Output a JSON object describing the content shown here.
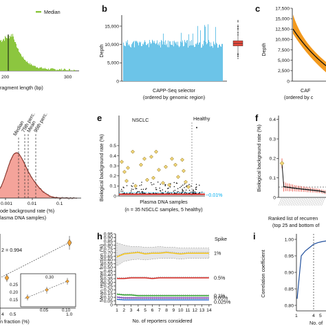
{
  "chart_data": [
    {
      "panel": "a-top",
      "type": "bar",
      "legend": [
        "Median"
      ],
      "xlabel": "ragment length (bp)",
      "x_ticks": [
        "200",
        "300"
      ],
      "x_range": [
        100,
        320
      ],
      "colors": {
        "bars": "#8cc63f",
        "median": "#1a1a1a"
      }
    },
    {
      "panel": "b",
      "label": "b",
      "type": "bar",
      "ylabel": "Depth",
      "xlabel_line1": "CAPP-Seq selector",
      "xlabel_line2": "(ordered by genomic region)",
      "y_ticks": [
        "0",
        "5,000",
        "10,000",
        "15,000"
      ],
      "ylim": [
        0,
        18000
      ],
      "typical_depth": 10200,
      "colors": {
        "bars": "#6cc4e8",
        "box": "#e8473a"
      }
    },
    {
      "panel": "c",
      "label": "c",
      "type": "line",
      "ylabel": "Depth",
      "xlabel_line1": "CAF",
      "xlabel_line2": "(ordered by c",
      "y_ticks": [
        "0",
        "2,500",
        "5,000",
        "7,500",
        "10,000",
        "12,500",
        "15,000",
        "17,500"
      ],
      "ylim": [
        0,
        17500
      ],
      "colors": {
        "band": "#f39a1e",
        "line": "#111111"
      }
    },
    {
      "panel": "d",
      "type": "area",
      "markers": [
        "Median",
        "75th perc.",
        "Mean",
        "95th perc."
      ],
      "x_ticks": [
        "0.001",
        "0.01",
        "0.1"
      ],
      "xlabel_line1": "ode background rate (%)",
      "xlabel_line2": "lasma DNA samples)",
      "colors": {
        "fill": "#f4a39a",
        "line": "#c0392b"
      }
    },
    {
      "panel": "e",
      "label": "e",
      "type": "scatter",
      "ylabel": "Biological background rate (%)",
      "y_ticks": [
        "0",
        "0.1",
        "0.2",
        "0.3",
        "0.4",
        "0.5"
      ],
      "ylim": [
        0,
        0.8
      ],
      "groups": [
        "NSCLC",
        "Healthy"
      ],
      "threshold_label": "~0.01%",
      "xlabel_line1": "Plasma DNA samples",
      "xlabel_line2": "(n = 35 NSCLC samples, 5 healthy)",
      "colors": {
        "diamond": "#f2d77a",
        "points": "#111111",
        "threshold": "#00aeef",
        "base": "#d0211c"
      }
    },
    {
      "panel": "f",
      "label": "f",
      "type": "line",
      "ylabel": "Biological background rate (%)",
      "y_ticks": [
        "0",
        "0.1",
        "0.2",
        "0.3",
        "0.4"
      ],
      "ylim": [
        0,
        0.42
      ],
      "values": [
        0.175,
        0.055,
        0.054,
        0.052,
        0.051,
        0.05,
        0.048,
        0.047,
        0.046,
        0.045,
        0.044,
        0.043,
        0.042,
        0.041,
        0.04,
        0.039,
        0.038,
        0.037,
        0.036,
        0.035,
        0.034,
        0.033,
        0.031,
        0.029,
        0.027
      ],
      "errors": [
        0.025,
        0.025,
        0.022,
        0.02,
        0.02,
        0.018,
        0.018,
        0.016,
        0.016,
        0.015,
        0.015,
        0.014,
        0.014,
        0.013,
        0.013,
        0.012,
        0.012,
        0.012,
        0.011,
        0.011,
        0.011,
        0.01,
        0.01,
        0.01,
        0.01
      ],
      "xlabel_line1": "Ranked list of recurren",
      "xlabel_line2": "(top 25 and bottom of",
      "colors": {
        "line": "#111111",
        "error": "#e8473a",
        "first": "#f2d77a"
      }
    },
    {
      "panel": "g",
      "type": "scatter",
      "r2_label": "2 = 0.994",
      "x_ticks": [
        "4",
        "0.5",
        "1.0"
      ],
      "inset_y_ticks": [
        "0.30",
        "0.25",
        "0.20",
        "0.15"
      ],
      "inset_x_ticks": [
        "0.05",
        "0.10"
      ],
      "xlabel": "n fraction (%)",
      "colors": {
        "point": "#f2a53a",
        "line": "#444444"
      }
    },
    {
      "panel": "h",
      "label": "h",
      "type": "line",
      "ylabel": "Mean reporter fraction (%)",
      "xlabel": "No. of reporters considered",
      "legend_title": "Spike",
      "x": [
        1,
        2,
        3,
        4,
        5,
        6,
        7,
        8,
        9,
        10,
        11,
        12,
        13,
        14
      ],
      "y_ticks": [
        "0",
        "0.05",
        "0.10",
        "0.15",
        "0.20",
        "0.25",
        "0.30",
        "0.35",
        "0.40",
        "0.45",
        "0.50",
        "0.55",
        "0.60",
        "0.65",
        "0.70",
        "0.75",
        "0.80",
        "0.85",
        "0.90",
        "0.95"
      ],
      "ylim": [
        0,
        0.95
      ],
      "series": [
        {
          "name": "1%",
          "color": "#f5c518",
          "values": [
            0.64,
            0.68,
            0.69,
            0.7,
            0.68,
            0.69,
            0.69,
            0.7,
            0.69,
            0.68,
            0.69,
            0.69,
            0.69,
            0.69
          ],
          "lower": [
            0.52,
            0.58,
            0.6,
            0.61,
            0.6,
            0.61,
            0.62,
            0.62,
            0.62,
            0.61,
            0.62,
            0.62,
            0.62,
            0.62
          ],
          "upper": [
            0.83,
            0.8,
            0.78,
            0.78,
            0.77,
            0.77,
            0.78,
            0.77,
            0.77,
            0.76,
            0.76,
            0.76,
            0.76,
            0.76
          ]
        },
        {
          "name": "0.5%",
          "color": "#d0211c",
          "values": [
            0.35,
            0.35,
            0.36,
            0.36,
            0.36,
            0.35,
            0.36,
            0.36,
            0.36,
            0.36,
            0.36,
            0.36,
            0.36,
            0.36
          ]
        },
        {
          "name": "0.1%",
          "color": "#2aa02b",
          "values": [
            0.14,
            0.13,
            0.13,
            0.12,
            0.12,
            0.12,
            0.12,
            0.12,
            0.12,
            0.12,
            0.12,
            0.12,
            0.12,
            0.12
          ]
        },
        {
          "name": "0.05%",
          "color": "#7f3fbf",
          "values": [
            0.1,
            0.09,
            0.09,
            0.09,
            0.09,
            0.09,
            0.09,
            0.09,
            0.09,
            0.09,
            0.09,
            0.09,
            0.09,
            0.09
          ]
        },
        {
          "name": "0.025%",
          "color": "#2b6cd0",
          "values": [
            0.07,
            0.065,
            0.065,
            0.065,
            0.065,
            0.065,
            0.065,
            0.065,
            0.065,
            0.065,
            0.065,
            0.065,
            0.065,
            0.065
          ]
        }
      ]
    },
    {
      "panel": "i",
      "label": "i",
      "type": "line",
      "ylabel": "Correlation coefficient",
      "xlabel": "No. of",
      "x_ticks": [
        "1",
        "4",
        "5"
      ],
      "y_ticks": [
        "0.80",
        "0.85",
        "0.90",
        "0.95",
        "1.00"
      ],
      "ylim": [
        0.8,
        1.0
      ],
      "x": [
        1,
        2,
        3,
        4,
        5,
        6,
        7,
        8
      ],
      "values": [
        0.82,
        0.95,
        0.965,
        0.975,
        0.985,
        0.99,
        0.993,
        0.995
      ],
      "colors": {
        "line": "#1f4e9c"
      }
    }
  ]
}
